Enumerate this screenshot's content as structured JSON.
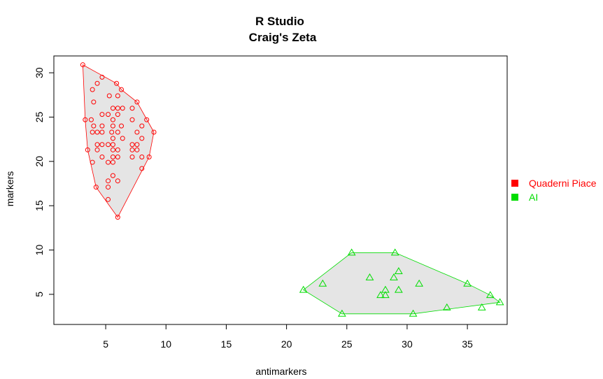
{
  "chart_data": {
    "type": "scatter",
    "title": "R Studio",
    "subtitle": "Craig's Zeta",
    "xlabel": "antimarkers",
    "ylabel": "markers",
    "xlim": [
      0.7,
      38.3
    ],
    "ylim": [
      1.6,
      31.9
    ],
    "xticks": [
      5,
      10,
      15,
      20,
      25,
      30,
      35
    ],
    "yticks": [
      5,
      10,
      15,
      20,
      25,
      30
    ],
    "grid": false,
    "legend_position": "right",
    "series": [
      {
        "name": "Quaderni Piacentini",
        "label": "Quaderni Piace",
        "color": "#ff0000",
        "marker": "circle",
        "hull": [
          [
            3.1,
            30.9
          ],
          [
            5.9,
            28.8
          ],
          [
            6.3,
            28.1
          ],
          [
            7.6,
            26.7
          ],
          [
            9.0,
            23.3
          ],
          [
            8.6,
            20.5
          ],
          [
            6.0,
            13.7
          ],
          [
            4.2,
            17.1
          ],
          [
            3.5,
            21.3
          ],
          [
            3.3,
            24.7
          ]
        ],
        "points": [
          [
            3.1,
            30.9
          ],
          [
            5.9,
            28.8
          ],
          [
            6.3,
            28.1
          ],
          [
            7.6,
            26.7
          ],
          [
            9.0,
            23.3
          ],
          [
            8.6,
            20.5
          ],
          [
            6.0,
            13.7
          ],
          [
            4.2,
            17.1
          ],
          [
            3.5,
            21.3
          ],
          [
            3.3,
            24.7
          ],
          [
            4.3,
            28.8
          ],
          [
            4.7,
            29.5
          ],
          [
            3.9,
            28.1
          ],
          [
            5.3,
            27.4
          ],
          [
            6.0,
            27.4
          ],
          [
            4.0,
            26.7
          ],
          [
            5.6,
            26.0
          ],
          [
            6.0,
            26.0
          ],
          [
            6.4,
            26.0
          ],
          [
            7.2,
            26.0
          ],
          [
            4.7,
            25.3
          ],
          [
            5.2,
            25.3
          ],
          [
            6.0,
            25.3
          ],
          [
            8.4,
            24.7
          ],
          [
            5.6,
            24.7
          ],
          [
            7.2,
            24.7
          ],
          [
            3.8,
            24.7
          ],
          [
            4.0,
            24.0
          ],
          [
            4.7,
            24.0
          ],
          [
            5.6,
            24.0
          ],
          [
            6.3,
            24.0
          ],
          [
            8.0,
            24.0
          ],
          [
            3.9,
            23.3
          ],
          [
            4.3,
            23.3
          ],
          [
            4.7,
            23.3
          ],
          [
            5.5,
            23.3
          ],
          [
            6.0,
            23.3
          ],
          [
            7.6,
            23.3
          ],
          [
            5.6,
            22.6
          ],
          [
            6.4,
            22.6
          ],
          [
            8.0,
            22.6
          ],
          [
            4.3,
            21.9
          ],
          [
            4.7,
            21.9
          ],
          [
            5.2,
            21.9
          ],
          [
            5.6,
            21.9
          ],
          [
            7.2,
            21.9
          ],
          [
            7.6,
            21.9
          ],
          [
            4.3,
            21.3
          ],
          [
            5.6,
            21.3
          ],
          [
            6.0,
            21.3
          ],
          [
            7.2,
            21.3
          ],
          [
            7.6,
            21.3
          ],
          [
            4.7,
            20.5
          ],
          [
            5.6,
            20.5
          ],
          [
            6.0,
            20.5
          ],
          [
            7.2,
            20.5
          ],
          [
            8.0,
            20.5
          ],
          [
            3.9,
            19.9
          ],
          [
            5.2,
            19.9
          ],
          [
            5.6,
            19.9
          ],
          [
            8.0,
            19.2
          ],
          [
            5.6,
            18.4
          ],
          [
            5.2,
            17.8
          ],
          [
            6.0,
            17.8
          ],
          [
            5.2,
            17.1
          ],
          [
            5.2,
            15.7
          ]
        ]
      },
      {
        "name": "AI",
        "label": "AI",
        "color": "#00dd00",
        "marker": "triangle",
        "hull": [
          [
            25.4,
            9.7
          ],
          [
            29.0,
            9.7
          ],
          [
            35.0,
            6.2
          ],
          [
            36.9,
            4.9
          ],
          [
            37.7,
            4.1
          ],
          [
            30.5,
            2.8
          ],
          [
            24.6,
            2.8
          ],
          [
            21.4,
            5.5
          ]
        ],
        "points": [
          [
            25.4,
            9.7
          ],
          [
            29.0,
            9.7
          ],
          [
            35.0,
            6.2
          ],
          [
            36.9,
            4.9
          ],
          [
            37.7,
            4.1
          ],
          [
            30.5,
            2.8
          ],
          [
            24.6,
            2.8
          ],
          [
            21.4,
            5.5
          ],
          [
            23.0,
            6.2
          ],
          [
            26.9,
            6.9
          ],
          [
            28.9,
            6.9
          ],
          [
            29.3,
            7.6
          ],
          [
            28.2,
            5.5
          ],
          [
            29.3,
            5.5
          ],
          [
            31.0,
            6.2
          ],
          [
            27.8,
            4.9
          ],
          [
            28.2,
            4.9
          ],
          [
            33.3,
            3.5
          ],
          [
            36.2,
            3.5
          ]
        ]
      }
    ]
  }
}
